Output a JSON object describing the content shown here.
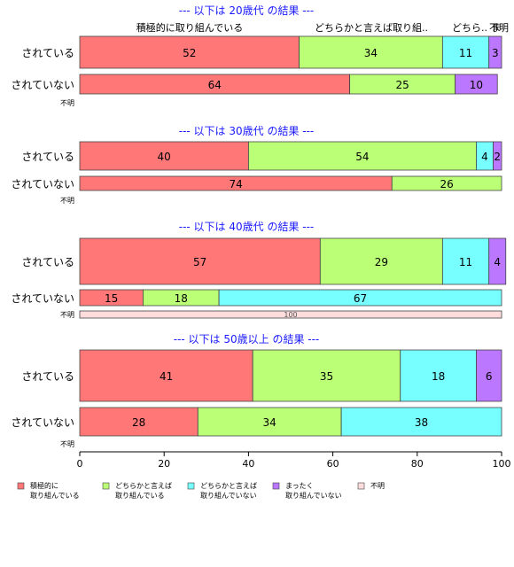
{
  "chart_data": {
    "type": "bar",
    "orientation": "horizontal",
    "stacked": true,
    "xlim": [
      0,
      100
    ],
    "xticks": [
      "0",
      "20",
      "40",
      "60",
      "80",
      "100"
    ],
    "series_names": [
      "積極的に\n取り組んでいる",
      "どちらかと言えば\n取り組んでいる",
      "どちらかと言えば\n取り組んでいない",
      "まったく\n取り組んでいない",
      "不明"
    ],
    "colors": [
      "#FF7777",
      "#BBFF77",
      "#77FFFF",
      "#BB77FF",
      "#FFDDDD"
    ],
    "top_labels": [
      "積極的に取り組んでいる",
      "どちらかと言えば取り組..",
      "どちら..",
      "ま",
      "不明"
    ],
    "groups": [
      {
        "title": "--- 以下は 20歳代 の結果 ---",
        "rows": [
          {
            "label": "されている",
            "values": [
              52,
              34,
              11,
              3,
              0
            ]
          },
          {
            "label": "されていない",
            "values": [
              64,
              25,
              0,
              10,
              0
            ]
          },
          {
            "label": "不明",
            "values": [
              0,
              0,
              0,
              0,
              0
            ]
          }
        ]
      },
      {
        "title": "--- 以下は 30歳代 の結果 ---",
        "rows": [
          {
            "label": "されている",
            "values": [
              40,
              54,
              4,
              2,
              0
            ]
          },
          {
            "label": "されていない",
            "values": [
              74,
              26,
              0,
              0,
              0
            ]
          },
          {
            "label": "不明",
            "values": [
              0,
              0,
              0,
              0,
              0
            ]
          }
        ]
      },
      {
        "title": "--- 以下は 40歳代 の結果 ---",
        "rows": [
          {
            "label": "されている",
            "values": [
              57,
              29,
              11,
              4,
              0
            ]
          },
          {
            "label": "されていない",
            "values": [
              15,
              18,
              67,
              0,
              0
            ]
          },
          {
            "label": "不明",
            "values": [
              0,
              0,
              0,
              0,
              100
            ]
          }
        ]
      },
      {
        "title": "--- 以下は 50歳以上 の結果 ---",
        "rows": [
          {
            "label": "されている",
            "values": [
              41,
              35,
              18,
              6,
              0
            ]
          },
          {
            "label": "されていない",
            "values": [
              28,
              34,
              38,
              0,
              0
            ]
          },
          {
            "label": "不明",
            "values": [
              0,
              0,
              0,
              0,
              0
            ]
          }
        ]
      }
    ]
  }
}
